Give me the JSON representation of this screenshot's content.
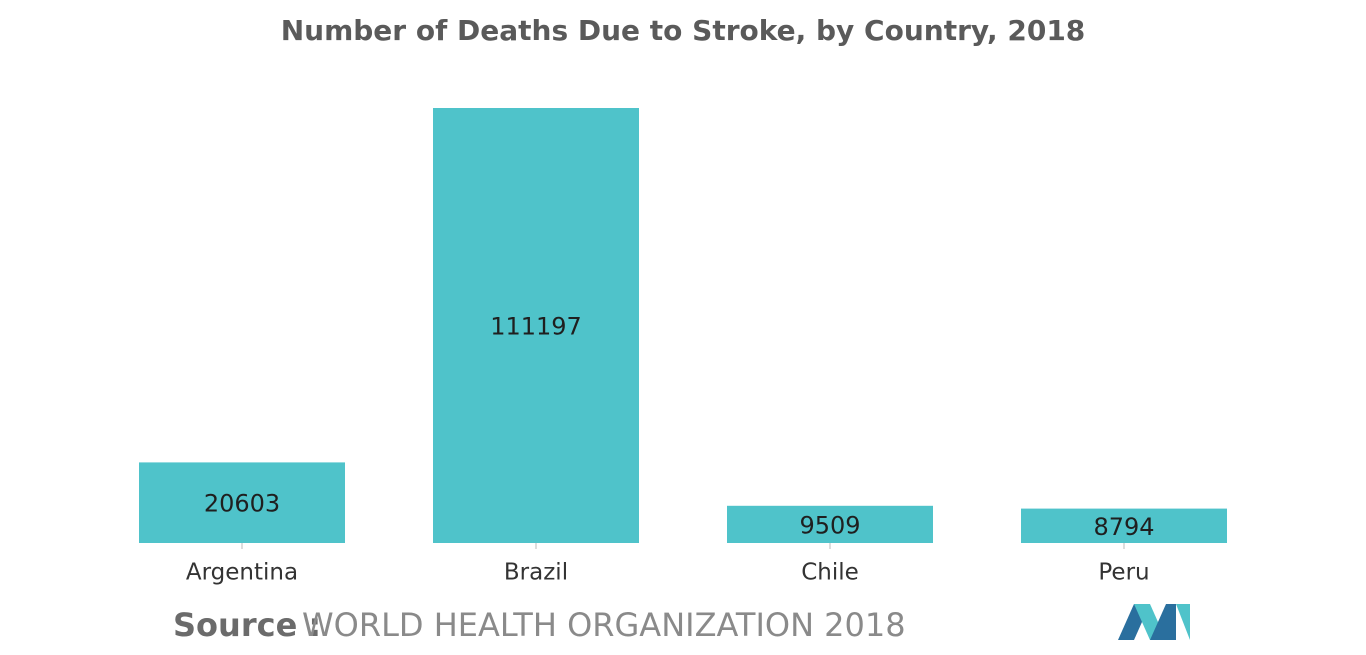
{
  "chart_data": {
    "type": "bar",
    "title": "Number of Deaths Due to Stroke, by Country, 2018",
    "categories": [
      "Argentina",
      "Brazil",
      "Chile",
      "Peru"
    ],
    "values": [
      20603,
      111197,
      9509,
      8794
    ],
    "color": "#4fc3ca",
    "source_label": "Source :",
    "source": "WORLD HEALTH ORGANIZATION 2018"
  }
}
